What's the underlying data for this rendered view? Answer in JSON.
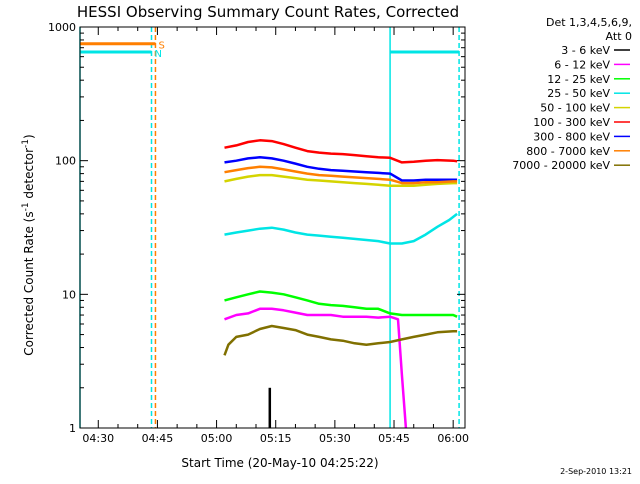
{
  "chart_data": {
    "type": "line",
    "title": "HESSI Observing Summary Count Rates, Corrected",
    "xlabel": "Start Time (20-May-10 04:25:22)",
    "ylabel": "Corrected Count Rate (s",
    "ylabel_sup1": "-1",
    "ylabel_mid": " detector",
    "ylabel_sup2": "-1",
    "ylabel_end": ")",
    "y_scale": "log",
    "ylim": [
      1,
      1000
    ],
    "xlim": [
      "04:25:22",
      "06:03:00"
    ],
    "x_ticks": [
      "04:30",
      "04:45",
      "05:00",
      "05:15",
      "05:30",
      "05:45",
      "06:00"
    ],
    "y_ticks": [
      "1",
      "10",
      "100",
      "1000"
    ],
    "grid": false,
    "legend_position": "right",
    "legend_header": [
      "Det 1,3,4,5,6,9,",
      "Att 0"
    ],
    "footer_date": "2-Sep-2010 13:21",
    "flags": [
      {
        "label": "S",
        "color": "#ff7f00",
        "value": 750,
        "start": "04:25:22",
        "end": "04:44:30"
      },
      {
        "label": "N",
        "color": "#00e5e5",
        "value": 650,
        "start": "04:25:22",
        "end": "04:43:30"
      },
      {
        "label": "",
        "color": "#00e5e5",
        "value": 650,
        "start": "05:44:00",
        "end": "06:01:30"
      }
    ],
    "markers": [
      {
        "color": "#00e5e5",
        "style": "solid",
        "x": "04:25:22"
      },
      {
        "color": "#00e5e5",
        "style": "dashed",
        "x": "04:43:30"
      },
      {
        "color": "#ff7f00",
        "style": "dashed",
        "x": "04:44:30"
      },
      {
        "color": "#00e5e5",
        "style": "solid",
        "x": "05:44:00"
      },
      {
        "color": "#00e5e5",
        "style": "dashed",
        "x": "06:01:30"
      }
    ],
    "series": [
      {
        "name": "3 - 6 keV",
        "color": "#000000",
        "x": [
          "05:13:30",
          "05:13:30"
        ],
        "values": [
          1,
          2
        ]
      },
      {
        "name": "6 - 12 keV",
        "color": "#ff00ff",
        "x": [
          "05:02",
          "05:05",
          "05:08",
          "05:11",
          "05:14",
          "05:17",
          "05:20",
          "05:23",
          "05:26",
          "05:29",
          "05:32",
          "05:35",
          "05:38",
          "05:41",
          "05:44",
          "05:46",
          "05:47",
          "05:48"
        ],
        "values": [
          6.5,
          7,
          7.2,
          7.8,
          7.8,
          7.6,
          7.3,
          7,
          7,
          7,
          6.8,
          6.8,
          6.8,
          6.7,
          6.8,
          6.5,
          2.5,
          1
        ]
      },
      {
        "name": "12 - 25 keV",
        "color": "#00ff00",
        "x": [
          "05:02",
          "05:05",
          "05:08",
          "05:11",
          "05:14",
          "05:17",
          "05:20",
          "05:23",
          "05:26",
          "05:29",
          "05:32",
          "05:35",
          "05:38",
          "05:41",
          "05:44",
          "05:47",
          "05:50",
          "05:53",
          "05:56",
          "06:00",
          "06:01"
        ],
        "values": [
          9,
          9.5,
          10,
          10.5,
          10.3,
          10,
          9.5,
          9,
          8.5,
          8.3,
          8.2,
          8,
          7.8,
          7.8,
          7.2,
          7,
          7,
          7,
          7,
          7,
          6.8
        ]
      },
      {
        "name": "25 - 50 keV",
        "color": "#00e5e5",
        "x": [
          "05:02",
          "05:05",
          "05:08",
          "05:11",
          "05:14",
          "05:17",
          "05:20",
          "05:23",
          "05:26",
          "05:29",
          "05:32",
          "05:35",
          "05:38",
          "05:41",
          "05:44",
          "05:47",
          "05:50",
          "05:53",
          "05:56",
          "05:59",
          "06:01"
        ],
        "values": [
          28,
          29,
          30,
          31,
          31.5,
          30.5,
          29,
          28,
          27.5,
          27,
          26.5,
          26,
          25.5,
          25,
          24,
          24,
          25,
          28,
          32,
          36,
          40
        ]
      },
      {
        "name": "50 - 100 keV",
        "color": "#d4d400",
        "x": [
          "05:02",
          "05:05",
          "05:08",
          "05:11",
          "05:14",
          "05:17",
          "05:20",
          "05:23",
          "05:26",
          "05:29",
          "05:32",
          "05:35",
          "05:38",
          "05:41",
          "05:44",
          "05:47",
          "05:50",
          "05:53",
          "05:56",
          "06:00",
          "06:01"
        ],
        "values": [
          70,
          73,
          76,
          78,
          78,
          76,
          74,
          72,
          71,
          70,
          69,
          68,
          67,
          66,
          65,
          65,
          65,
          66,
          67,
          68,
          68
        ]
      },
      {
        "name": "100 - 300 keV",
        "color": "#ff0000",
        "x": [
          "05:02",
          "05:05",
          "05:08",
          "05:11",
          "05:14",
          "05:17",
          "05:20",
          "05:23",
          "05:26",
          "05:29",
          "05:32",
          "05:35",
          "05:38",
          "05:41",
          "05:44",
          "05:47",
          "05:50",
          "05:53",
          "05:56",
          "06:00",
          "06:01"
        ],
        "values": [
          125,
          130,
          138,
          142,
          140,
          133,
          125,
          118,
          115,
          113,
          112,
          110,
          108,
          106,
          105,
          97,
          98,
          100,
          101,
          100,
          99
        ]
      },
      {
        "name": "300 - 800 keV",
        "color": "#0000ff",
        "x": [
          "05:02",
          "05:05",
          "05:08",
          "05:11",
          "05:14",
          "05:17",
          "05:20",
          "05:23",
          "05:26",
          "05:29",
          "05:32",
          "05:35",
          "05:38",
          "05:41",
          "05:44",
          "05:47",
          "05:50",
          "05:53",
          "05:56",
          "06:00",
          "06:01"
        ],
        "values": [
          97,
          100,
          104,
          106,
          104,
          100,
          95,
          90,
          87,
          85,
          84,
          83,
          82,
          81,
          80,
          71,
          71,
          72,
          72,
          72,
          72
        ]
      },
      {
        "name": "800 - 7000 keV",
        "color": "#ff7f00",
        "x": [
          "05:02",
          "05:05",
          "05:08",
          "05:11",
          "05:14",
          "05:17",
          "05:20",
          "05:23",
          "05:26",
          "05:29",
          "05:32",
          "05:35",
          "05:38",
          "05:41",
          "05:44",
          "05:47",
          "05:50",
          "05:53",
          "05:56",
          "06:00",
          "06:01"
        ],
        "values": [
          82,
          85,
          88,
          90,
          89,
          86,
          83,
          80,
          78,
          77,
          76,
          75,
          74,
          73,
          72,
          68,
          68,
          69,
          69,
          70,
          70
        ]
      },
      {
        "name": "7000 - 20000 keV",
        "color": "#807000",
        "x": [
          "05:02",
          "05:03",
          "05:05",
          "05:08",
          "05:11",
          "05:14",
          "05:17",
          "05:20",
          "05:23",
          "05:26",
          "05:29",
          "05:32",
          "05:35",
          "05:38",
          "05:41",
          "05:44",
          "05:47",
          "05:50",
          "05:53",
          "05:56",
          "06:00",
          "06:01"
        ],
        "values": [
          3.5,
          4.2,
          4.8,
          5,
          5.5,
          5.8,
          5.6,
          5.4,
          5,
          4.8,
          4.6,
          4.5,
          4.3,
          4.2,
          4.3,
          4.4,
          4.6,
          4.8,
          5,
          5.2,
          5.3,
          5.3
        ]
      }
    ]
  }
}
